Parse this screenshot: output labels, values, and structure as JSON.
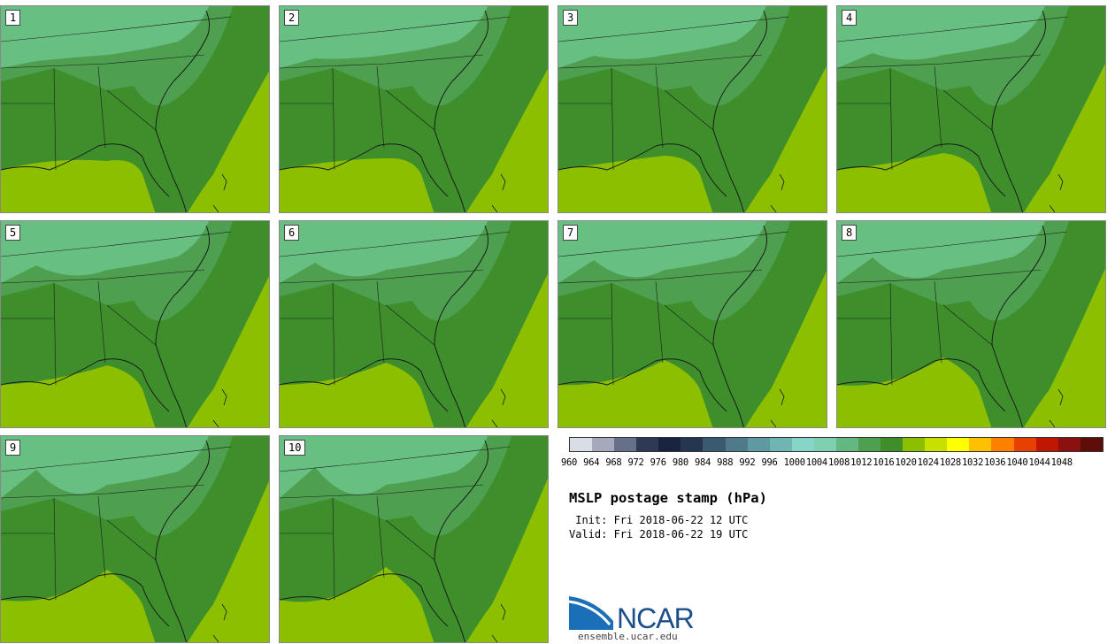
{
  "panels": [
    {
      "label": "1"
    },
    {
      "label": "2"
    },
    {
      "label": "3"
    },
    {
      "label": "4"
    },
    {
      "label": "5"
    },
    {
      "label": "6"
    },
    {
      "label": "7"
    },
    {
      "label": "8"
    },
    {
      "label": "9"
    },
    {
      "label": "10"
    }
  ],
  "colorbar": {
    "ticks": [
      "960",
      "964",
      "968",
      "972",
      "976",
      "980",
      "984",
      "988",
      "992",
      "996",
      "1000",
      "1004",
      "1008",
      "1012",
      "1016",
      "1020",
      "1024",
      "1028",
      "1032",
      "1036",
      "1040",
      "1044",
      "1048"
    ],
    "colors": [
      "#d9dde6",
      "#a5a9bb",
      "#67708a",
      "#2e3a55",
      "#1a2440",
      "#243650",
      "#3a5a72",
      "#4f7a8a",
      "#5e9aa0",
      "#6fb6b2",
      "#86d6c8",
      "#7fd0b0",
      "#62b880",
      "#4ea050",
      "#3f8e2c",
      "#8bbf00",
      "#c8e000",
      "#ffff00",
      "#ffc000",
      "#ff8000",
      "#e84000",
      "#c01800",
      "#8c1010",
      "#5e0e08"
    ]
  },
  "title": "MSLP postage stamp (hPa)",
  "init": " Init: Fri 2018-06-22 12 UTC",
  "valid": "Valid: Fri 2018-06-22 19 UTC",
  "logo": {
    "name": "NCAR",
    "url": "ensemble.ucar.edu"
  },
  "map_colors": {
    "land_high": "#68bf82",
    "land_mid": "#4ea050",
    "land_low": "#3f8e2c",
    "ocean": "#8bbf00",
    "border": "#1a1a1a"
  }
}
